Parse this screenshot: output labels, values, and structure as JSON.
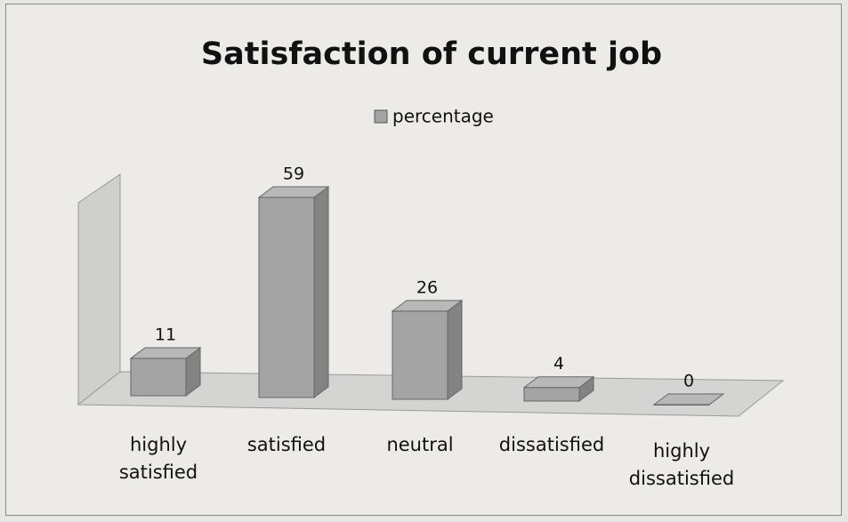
{
  "chart_data": {
    "type": "bar3d",
    "title": "Satisfaction of current job",
    "categories": [
      "highly satisfied",
      "satisfied",
      "neutral",
      "dissatisfied",
      "highly dissatisfied"
    ],
    "series": [
      {
        "name": "percentage",
        "color": "#a4a4a4",
        "values": [
          11,
          59,
          26,
          4,
          0
        ]
      }
    ]
  }
}
